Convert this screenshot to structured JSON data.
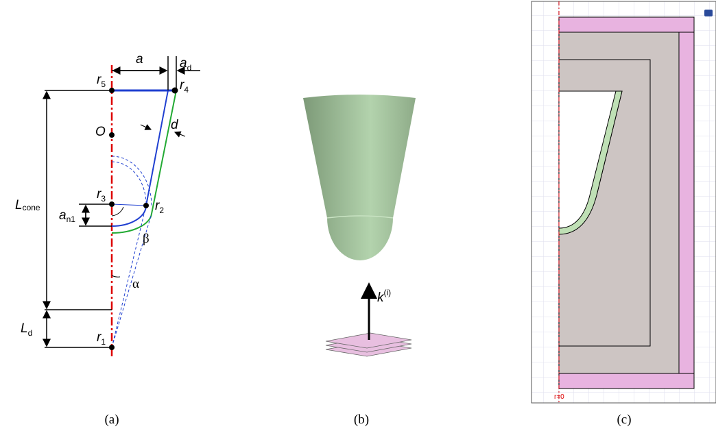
{
  "panels": {
    "a": {
      "caption": "(a)",
      "labels": {
        "a": "a",
        "a_d": {
          "main": "a",
          "sub": "d"
        },
        "r5": {
          "main": "r",
          "sub": "5"
        },
        "r4": {
          "main": "r",
          "sub": "4"
        },
        "origin": "O",
        "d": "d",
        "L_cone": {
          "main": "L",
          "sub": "cone"
        },
        "r3": {
          "main": "r",
          "sub": "3"
        },
        "r2": {
          "main": "r",
          "sub": "2"
        },
        "a_n1": {
          "main": "a",
          "sub": "n1"
        },
        "beta": "β",
        "alpha": "α",
        "L_d": {
          "main": "L",
          "sub": "d"
        },
        "r1": {
          "main": "r",
          "sub": "1"
        }
      }
    },
    "b": {
      "caption": "(b)",
      "wave_vector": {
        "main": "k",
        "sup": "(i)"
      }
    },
    "c": {
      "caption": "(c)",
      "axis_label": "r=0"
    }
  }
}
